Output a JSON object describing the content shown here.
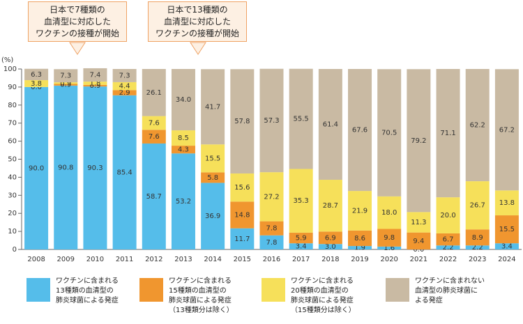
{
  "chart_data": {
    "type": "stacked_bar",
    "ylabel": "(%)",
    "annotations": [
      "日本で7種類の\n血清型に対応した\nワクチンの接種が開始",
      "日本で13種類の\n血清型に対応した\nワクチンの接種が開始"
    ],
    "categories": [
      "2008",
      "2009",
      "2010",
      "2011",
      "2012",
      "2013",
      "2014",
      "2015",
      "2016",
      "2017",
      "2018",
      "2019",
      "2020",
      "2021",
      "2022",
      "2023",
      "2024"
    ],
    "ylim": [
      0,
      100
    ],
    "yticks": [
      0,
      10,
      20,
      30,
      40,
      50,
      60,
      70,
      80,
      90,
      100
    ],
    "series": [
      {
        "name": "ワクチンに含まれる\n13種類の血清型の\n肺炎球菌による発症",
        "color": "#55bdea",
        "values": [
          90.0,
          90.8,
          90.3,
          85.4,
          58.7,
          53.2,
          36.9,
          11.7,
          7.8,
          3.4,
          3.0,
          1.9,
          1.6,
          0.0,
          2.2,
          2.2,
          3.4
        ],
        "value_labels": [
          "90.0",
          "90.8",
          "90.3",
          "85.4",
          "58.7",
          "53.2",
          "36.9",
          "11.7",
          "7.8",
          "3.4",
          "3.0",
          "1.9",
          "1.6",
          "0.0",
          "2.2",
          "2.2",
          "3.4"
        ]
      },
      {
        "name": "ワクチンに含まれる\n15種類の血清型の\n肺炎球菌による発症\n（13種類分は除く）",
        "color": "#f0962f",
        "values": [
          0.0,
          0.9,
          0.9,
          2.9,
          7.6,
          4.3,
          5.8,
          14.8,
          7.8,
          5.9,
          6.9,
          8.6,
          9.8,
          9.4,
          6.7,
          8.9,
          15.5
        ],
        "value_labels": [
          "0.0",
          "0.9",
          "0.9",
          "2.9",
          "7.6",
          "4.3",
          "5.8",
          "14.8",
          "7.8",
          "5.9",
          "6.9",
          "8.6",
          "9.8",
          "9.4",
          "6.7",
          "8.9",
          "15.5"
        ]
      },
      {
        "name": "ワクチンに含まれる\n20種類の血清型の\n肺炎球菌による発症\n（15種類分は除く）",
        "color": "#f6e05a",
        "values": [
          3.8,
          0.9,
          1.8,
          4.4,
          7.6,
          8.5,
          15.5,
          15.6,
          27.2,
          35.3,
          28.7,
          21.9,
          18.0,
          11.3,
          20.0,
          26.7,
          13.8
        ],
        "value_labels": [
          "3.8",
          "0.9",
          "1.8",
          "4.4",
          "7.6",
          "8.5",
          "15.5",
          "15.6",
          "27.2",
          "35.3",
          "28.7",
          "21.9",
          "18.0",
          "11.3",
          "20.0",
          "26.7",
          "13.8"
        ]
      },
      {
        "name": "ワクチンに含まれない\n血清型の肺炎球菌に\nよる発症",
        "color": "#c9baa3",
        "values": [
          6.3,
          7.3,
          7.4,
          7.3,
          26.1,
          34.0,
          41.7,
          57.8,
          57.3,
          55.5,
          61.4,
          67.6,
          70.5,
          79.2,
          71.1,
          62.2,
          67.2
        ],
        "value_labels": [
          "6.3",
          "7.3",
          "7.4",
          "7.3",
          "26.1",
          "34.0",
          "41.7",
          "57.8",
          "57.3",
          "55.5",
          "61.4",
          "67.6",
          "70.5",
          "79.2",
          "71.1",
          "62.2",
          "67.2"
        ]
      }
    ]
  }
}
